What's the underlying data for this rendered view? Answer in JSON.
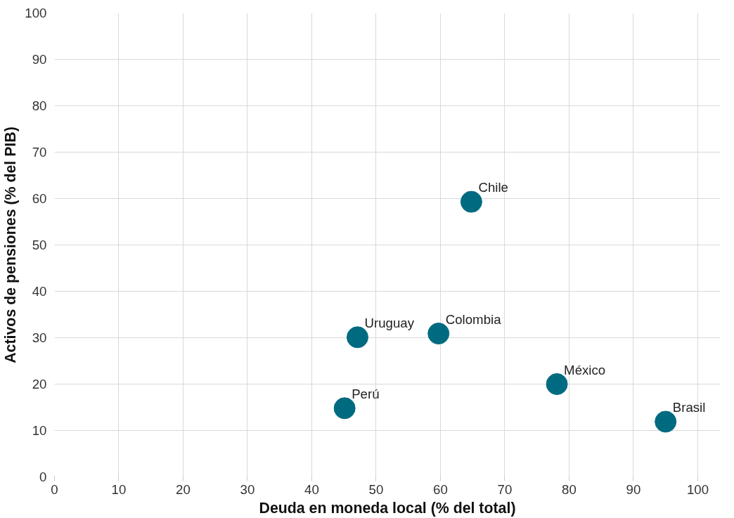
{
  "chart_data": {
    "type": "scatter",
    "xlabel": "Deuda en moneda local (% del total)",
    "ylabel": "Activos de pensiones (% del PIB)",
    "x": [
      64.8,
      47.1,
      59.7,
      45.1,
      78.1,
      95.0
    ],
    "series": [
      {
        "color": "#006b80",
        "values": [
          59.3,
          30.1,
          30.9,
          14.8,
          20.0,
          11.9
        ]
      }
    ],
    "annotations": [
      {
        "text": "Chile",
        "x": 64.8,
        "y": 59.3
      },
      {
        "text": "Uruguay",
        "x": 47.1,
        "y": 30.1
      },
      {
        "text": "Colombia",
        "x": 59.7,
        "y": 30.9
      },
      {
        "text": "Perú",
        "x": 45.1,
        "y": 14.8
      },
      {
        "text": "México",
        "x": 78.1,
        "y": 20.0
      },
      {
        "text": "Brasil",
        "x": 95.0,
        "y": 11.9
      }
    ],
    "xlim": [
      0,
      100
    ],
    "ylim": [
      0,
      100
    ],
    "xticks": [
      0,
      10,
      20,
      30,
      40,
      50,
      60,
      70,
      80,
      90,
      100
    ],
    "yticks": [
      0,
      10,
      20,
      30,
      40,
      50,
      60,
      70,
      80,
      90,
      100
    ],
    "grid": true,
    "marker": "circle"
  }
}
